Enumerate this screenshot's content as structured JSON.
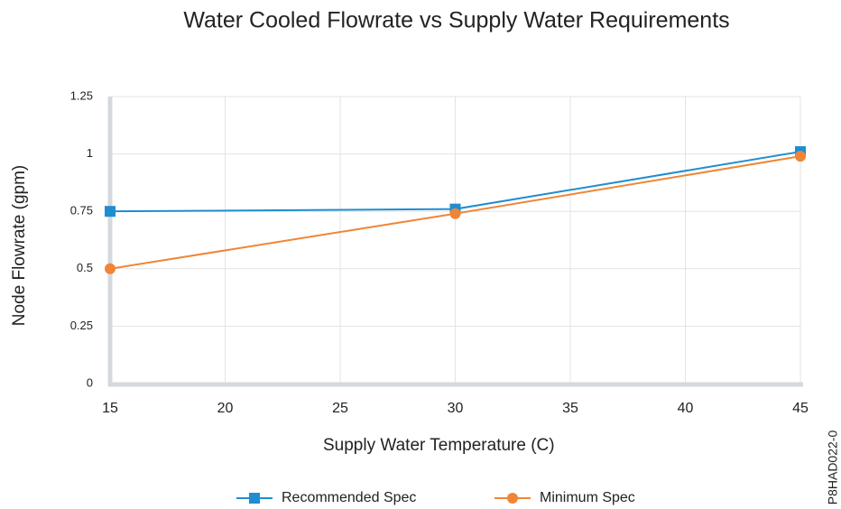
{
  "chart_data": {
    "type": "line",
    "title": "Water Cooled Flowrate vs Supply Water Requirements",
    "xlabel": "Supply Water Temperature (C)",
    "ylabel": "Node Flowrate (gpm)",
    "figure_id": "P8HAD022-0",
    "x": [
      15,
      30,
      45
    ],
    "series": [
      {
        "name": "Recommended Spec",
        "color": "#1f8dd0",
        "marker": "square",
        "values": [
          0.75,
          0.76,
          1.01
        ]
      },
      {
        "name": "Minimum Spec",
        "color": "#f08536",
        "marker": "circle",
        "values": [
          0.5,
          0.74,
          0.99
        ]
      }
    ],
    "xlim": [
      15,
      45
    ],
    "xticks": [
      15,
      20,
      25,
      30,
      35,
      40,
      45
    ],
    "ylim": [
      0,
      1.25
    ],
    "yticks": [
      0,
      0.25,
      0.5,
      0.75,
      1,
      1.25
    ],
    "grid": true,
    "legend": "bottom"
  }
}
